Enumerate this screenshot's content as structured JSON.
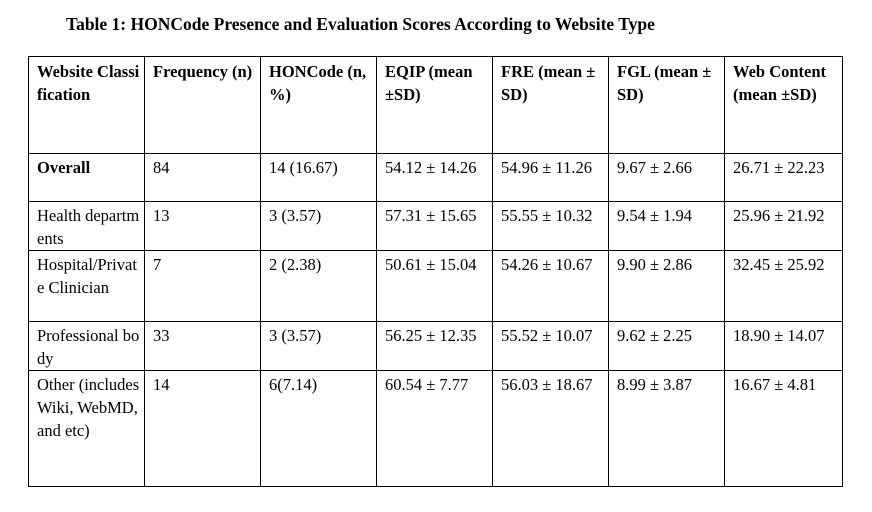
{
  "caption": "Table 1: HONCode Presence and Evaluation Scores According to Website Type",
  "table": {
    "headers": [
      "Website Classification",
      "Frequency (n)",
      "HONCode (n, %)",
      "EQIP (mean ±SD)",
      "FRE (mean ± SD)",
      "FGL (mean ± SD)",
      "Web Content (mean ±SD)"
    ],
    "rows": [
      [
        "Overall",
        "84",
        "14 (16.67)",
        "54.12 ± 14.26",
        "54.96 ± 11.26",
        "9.67 ± 2.66",
        "26.71 ± 22.23"
      ],
      [
        "Health departments",
        "13",
        "3 (3.57)",
        "57.31 ± 15.65",
        "55.55 ± 10.32",
        "9.54 ± 1.94",
        "25.96 ± 21.92"
      ],
      [
        "Hospital/Private Clinician",
        "7",
        "2 (2.38)",
        "50.61 ± 15.04",
        "54.26 ± 10.67",
        "9.90 ± 2.86",
        "32.45 ± 25.92"
      ],
      [
        "Professional body",
        "33",
        "3 (3.57)",
        "56.25 ± 12.35",
        "55.52 ± 10.07",
        "9.62 ± 2.25",
        "18.90 ± 14.07"
      ],
      [
        "Other (includes Wiki, WebMD, and etc)",
        "14",
        "6(7.14)",
        "60.54 ± 7.77",
        "56.03 ± 18.67",
        "8.99 ± 3.87",
        "16.67 ± 4.81"
      ]
    ]
  }
}
